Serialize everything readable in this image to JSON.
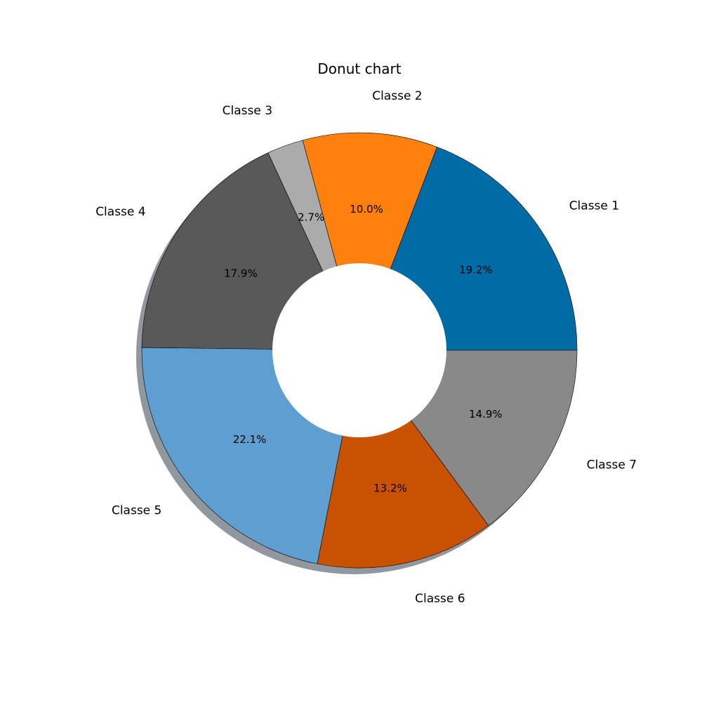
{
  "chart_data": {
    "type": "pie",
    "variant": "donut",
    "title": "Donut chart",
    "categories": [
      "Classe 1",
      "Classe 2",
      "Classe 3",
      "Classe 4",
      "Classe 5",
      "Classe 6",
      "Classe 7"
    ],
    "values": [
      19.2,
      10.0,
      2.7,
      17.9,
      22.1,
      13.2,
      14.9
    ],
    "labels_pct": [
      "19.2%",
      "10.0%",
      "2.7%",
      "17.9%",
      "22.1%",
      "13.2%",
      "14.9%"
    ],
    "colors": [
      "#006BA4",
      "#FF800E",
      "#ABABAB",
      "#595959",
      "#5F9ED1",
      "#C85200",
      "#898989"
    ],
    "start_angle_deg": 0,
    "direction": "counterclockwise",
    "shadow": true,
    "legend": "none"
  }
}
